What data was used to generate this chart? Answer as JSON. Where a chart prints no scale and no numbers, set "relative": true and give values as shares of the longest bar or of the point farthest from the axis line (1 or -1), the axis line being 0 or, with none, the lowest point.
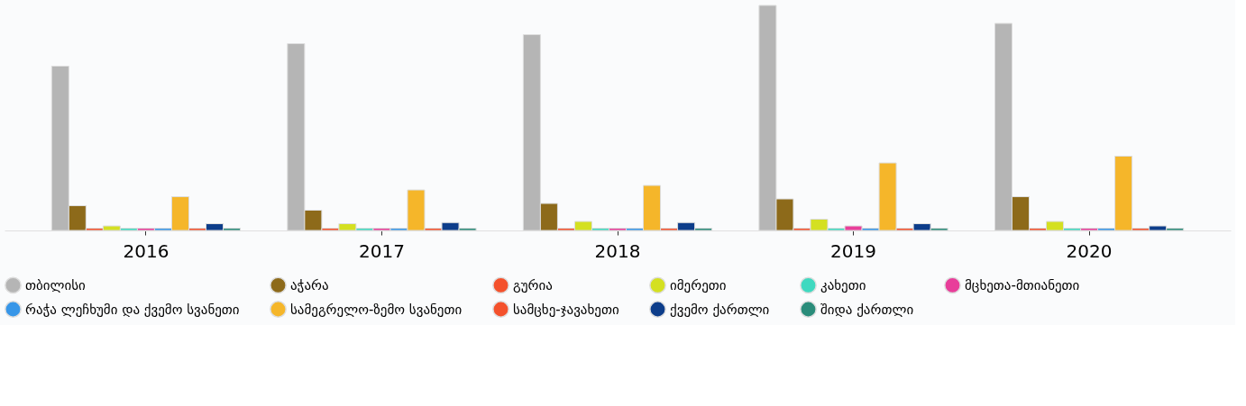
{
  "chart_data": {
    "type": "bar",
    "relative": true,
    "categories": [
      "2016",
      "2017",
      "2018",
      "2019",
      "2020"
    ],
    "legend": "bottom",
    "series": [
      {
        "name": "თბილისი",
        "color": "#b5b5b5",
        "values": [
          0.73,
          0.83,
          0.87,
          1,
          0.92
        ]
      },
      {
        "name": "აჭარა",
        "color": "#8d6a1a",
        "values": [
          0.11,
          0.09,
          0.12,
          0.14,
          0.15
        ]
      },
      {
        "name": "გურია",
        "color": "#f4512c",
        "values": [
          0.01,
          0.01,
          0.01,
          0.01,
          0.01
        ]
      },
      {
        "name": "იმერეთი",
        "color": "#d4e021",
        "values": [
          0.02,
          0.03,
          0.04,
          0.05,
          0.04
        ]
      },
      {
        "name": "კახეთი",
        "color": "#3fd9c0",
        "values": [
          0.01,
          0.01,
          0.01,
          0.01,
          0.01
        ]
      },
      {
        "name": "მცხეთა-მთიანეთი",
        "color": "#e83e9a",
        "values": [
          0.01,
          0.01,
          0.01,
          0.02,
          0.01
        ]
      },
      {
        "name": "რაჭა ლეჩხუმი და ქვემო სვანეთი",
        "color": "#3796e8",
        "values": [
          0.01,
          0.01,
          0.01,
          0.01,
          0.01
        ]
      },
      {
        "name": "სამეგრელო-ზემო სვანეთი",
        "color": "#f5b62a",
        "values": [
          0.15,
          0.18,
          0.2,
          0.3,
          0.33
        ]
      },
      {
        "name": "სამცხე-ჯავახეთი",
        "color": "#f4512c",
        "values": [
          0.01,
          0.01,
          0.01,
          0.01,
          0.01
        ]
      },
      {
        "name": "ქვემო ქართლი",
        "color": "#0d3d8a",
        "values": [
          0.03,
          0.035,
          0.035,
          0.03,
          0.02
        ]
      },
      {
        "name": "შიდა ქართლი",
        "color": "#2a8c7a",
        "values": [
          0.01,
          0.01,
          0.01,
          0.01,
          0.01
        ]
      }
    ]
  }
}
